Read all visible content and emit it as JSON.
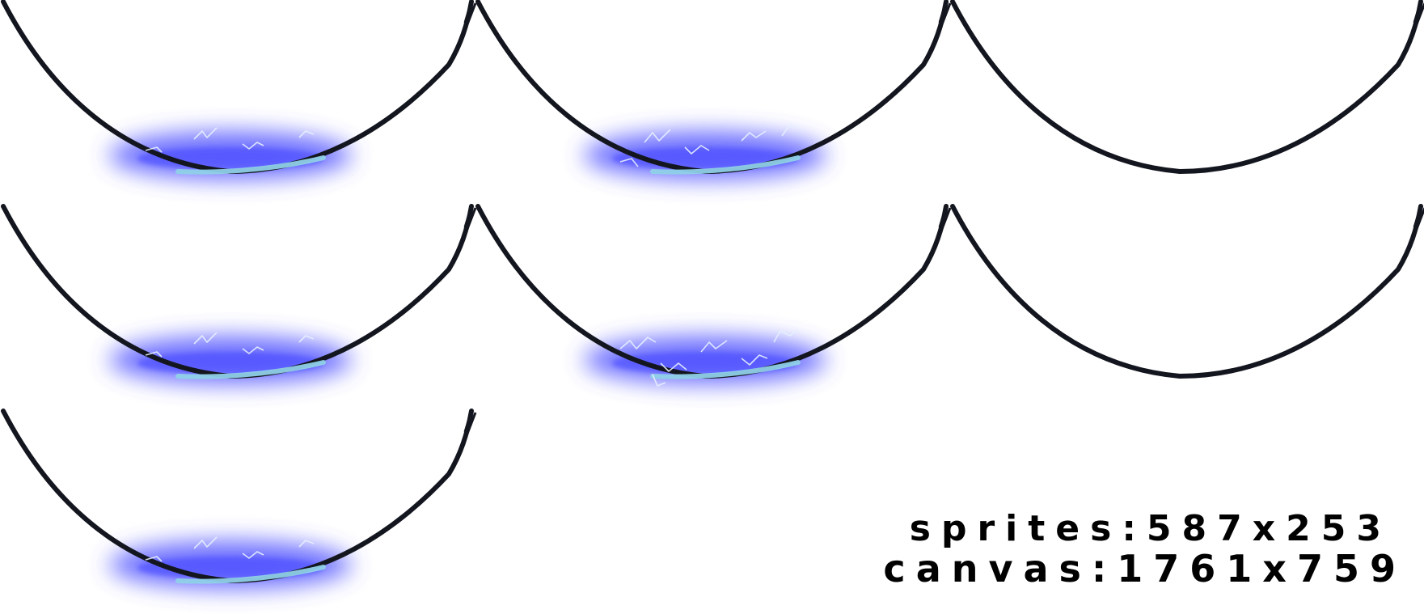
{
  "sheet": {
    "columns": 3,
    "rows": 3,
    "frames": [
      {
        "index": 1,
        "glow": true,
        "sparks": "light"
      },
      {
        "index": 2,
        "glow": true,
        "sparks": "medium"
      },
      {
        "index": 3,
        "glow": false,
        "sparks": "none"
      },
      {
        "index": 4,
        "glow": true,
        "sparks": "light"
      },
      {
        "index": 5,
        "glow": true,
        "sparks": "heavy"
      },
      {
        "index": 6,
        "glow": false,
        "sparks": "none"
      },
      {
        "index": 7,
        "glow": true,
        "sparks": "light"
      }
    ]
  },
  "labels": {
    "sprites": "sprites:587x253",
    "canvas": "canvas:1761x759"
  },
  "colors": {
    "background": "#ffffff",
    "cord": "#14161f",
    "glow": "#4a4cff",
    "core": "#8fd0e8",
    "spark": "#e6f0ff",
    "text": "#000000"
  }
}
